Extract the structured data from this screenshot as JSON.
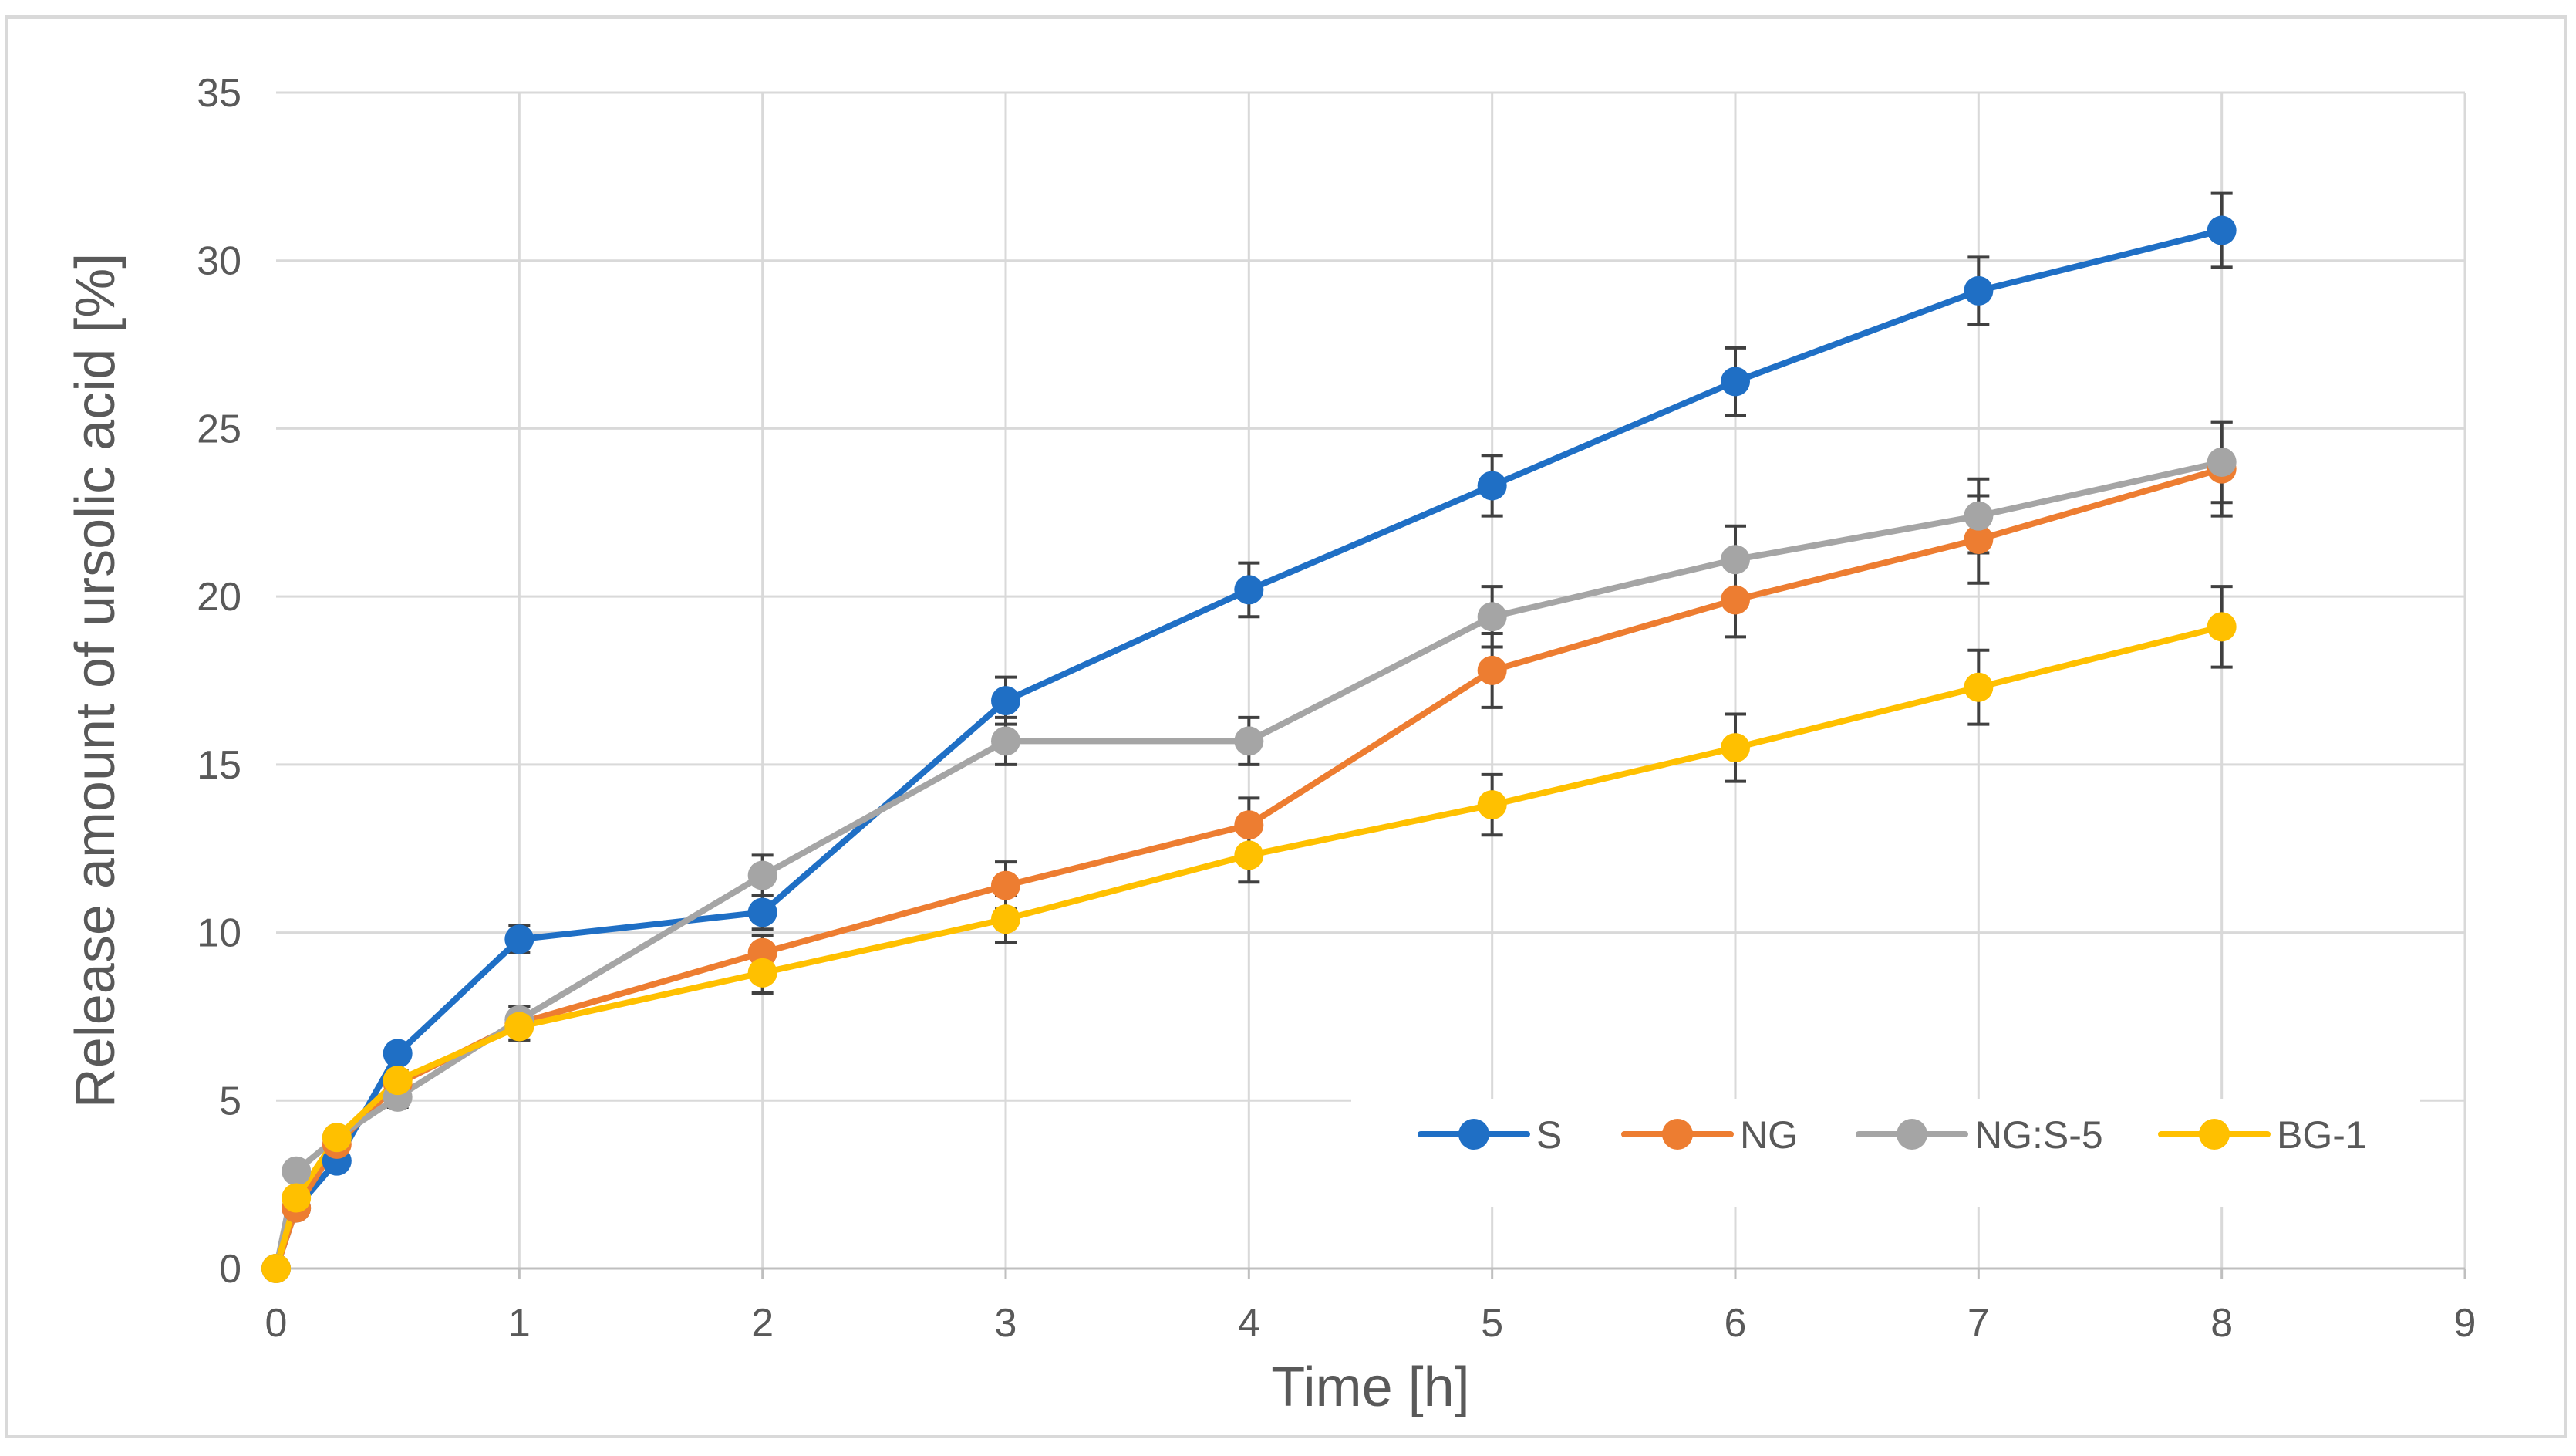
{
  "chart_data": {
    "type": "line",
    "title": "",
    "xlabel": "Time [h]",
    "ylabel": "Release amount of ursolic acid [%]",
    "xlim": [
      0,
      9
    ],
    "ylim": [
      0,
      35
    ],
    "xticks": [
      0,
      1,
      2,
      3,
      4,
      5,
      6,
      7,
      8,
      9
    ],
    "yticks": [
      0,
      5,
      10,
      15,
      20,
      25,
      30,
      35
    ],
    "grid": true,
    "legend_position": "bottom-right",
    "series": [
      {
        "name": "S",
        "color": "#1F6FC5",
        "x": [
          0,
          0.083,
          0.25,
          0.5,
          1,
          2,
          3,
          4,
          5,
          6,
          7,
          8
        ],
        "values": [
          0,
          1.8,
          3.2,
          6.4,
          9.8,
          10.6,
          16.9,
          20.2,
          23.3,
          26.4,
          29.1,
          30.9
        ],
        "errors": [
          0,
          0.2,
          0.2,
          0.2,
          0.4,
          0.5,
          0.7,
          0.8,
          0.9,
          1.0,
          1.0,
          1.1
        ]
      },
      {
        "name": "NG",
        "color": "#ED7D31",
        "x": [
          0,
          0.083,
          0.25,
          0.5,
          1,
          2,
          3,
          4,
          5,
          6,
          7,
          8
        ],
        "values": [
          0,
          1.8,
          3.7,
          5.5,
          7.3,
          9.4,
          11.4,
          13.2,
          17.8,
          19.9,
          21.7,
          23.8
        ],
        "errors": [
          0,
          0.2,
          0.2,
          0.3,
          0.5,
          0.5,
          0.7,
          0.8,
          1.1,
          1.1,
          1.3,
          1.4
        ]
      },
      {
        "name": "NG:S-5",
        "color": "#A5A5A5",
        "x": [
          0,
          0.083,
          0.25,
          0.5,
          1,
          2,
          3,
          4,
          5,
          6,
          7,
          8
        ],
        "values": [
          0,
          2.9,
          3.9,
          5.1,
          7.4,
          11.7,
          15.7,
          15.7,
          19.4,
          21.1,
          22.4,
          24.0
        ],
        "errors": [
          0,
          0.2,
          0.2,
          0.3,
          0.4,
          0.6,
          0.7,
          0.7,
          0.9,
          1.0,
          1.1,
          1.2
        ]
      },
      {
        "name": "BG-1",
        "color": "#FFC000",
        "x": [
          0,
          0.083,
          0.25,
          0.5,
          1,
          2,
          3,
          4,
          5,
          6,
          7,
          8
        ],
        "values": [
          0,
          2.1,
          3.9,
          5.6,
          7.2,
          8.8,
          10.4,
          12.3,
          13.8,
          15.5,
          17.3,
          19.1
        ],
        "errors": [
          0,
          0.2,
          0.2,
          0.3,
          0.4,
          0.6,
          0.7,
          0.8,
          0.9,
          1.0,
          1.1,
          1.2
        ]
      }
    ]
  }
}
